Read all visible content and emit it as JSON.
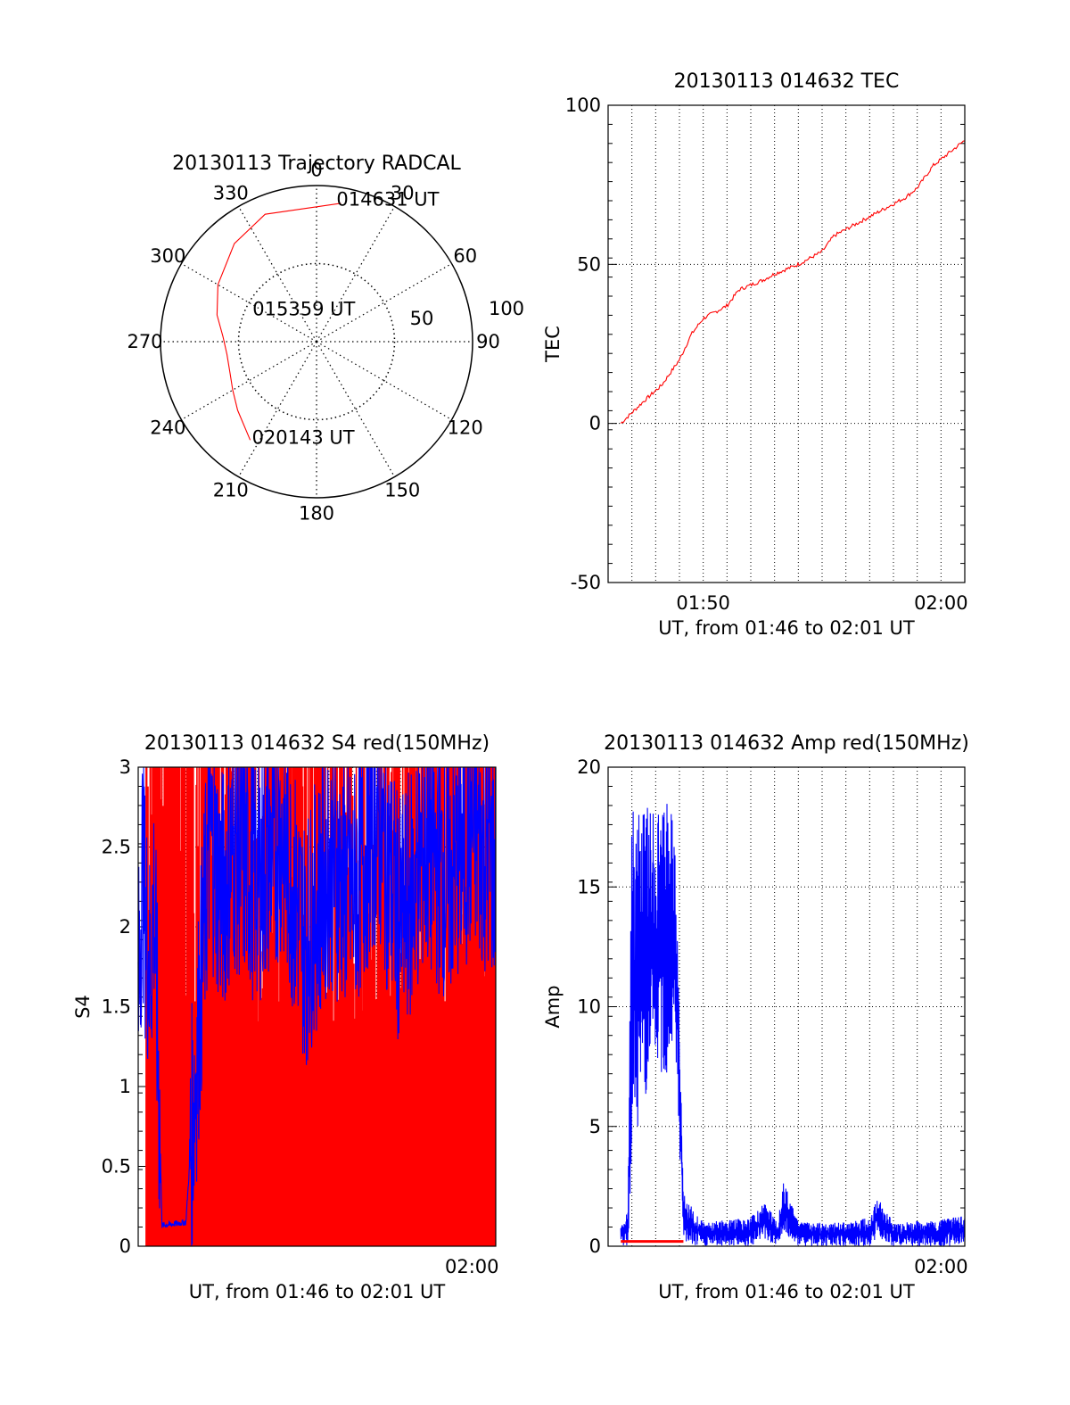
{
  "colors": {
    "red": "#ff0000",
    "blue": "#0000ff",
    "axis": "#000000",
    "grid": "#000000"
  },
  "chart_data": [
    {
      "id": "trajectory",
      "type": "scatter",
      "subtype": "polar",
      "title": "20130113 Trajectory RADCAL",
      "azimuth_labels": [
        "0",
        "30",
        "60",
        "90",
        "120",
        "150",
        "180",
        "210",
        "240",
        "270",
        "300",
        "330"
      ],
      "radius_labels": [
        "50",
        "100"
      ],
      "rlim": [
        0,
        100
      ],
      "grid": true,
      "series": [
        {
          "color": "#ff0000",
          "azimuth": [
            10,
            338,
            320,
            300,
            285,
            273,
            262,
            250,
            240,
            229,
            214
          ],
          "radius": [
            90,
            88,
            82,
            73,
            66,
            60,
            58,
            59,
            62,
            67,
            76
          ]
        }
      ],
      "annotations": [
        {
          "text": "014631 UT",
          "azimuth": 8,
          "radius": 92
        },
        {
          "text": "015359 UT",
          "azimuth": 297,
          "radius": 46
        },
        {
          "text": "020143 UT",
          "azimuth": 214,
          "radius": 74
        }
      ]
    },
    {
      "id": "tec",
      "type": "line",
      "title": "20130113 014632 TEC",
      "ylabel": "TEC",
      "xlabel": "UT, from 01:46 to 02:01 UT",
      "xlim": [
        "01:46",
        "02:01"
      ],
      "ylim": [
        -50,
        100
      ],
      "yticks": [
        "-50",
        "0",
        "50",
        "100"
      ],
      "xticks": [
        "01:50",
        "02:00"
      ],
      "grid": true,
      "series": [
        {
          "color": "#ff0000",
          "x": [
            "01:46:32",
            "01:47:30",
            "01:48:15",
            "01:49:00",
            "01:49:30",
            "01:50:00",
            "01:51:00",
            "01:51:30",
            "01:52:30",
            "01:53:00",
            "01:54:00",
            "01:55:00",
            "01:55:30",
            "01:56:30",
            "01:57:30",
            "01:58:30",
            "01:59:00",
            "01:59:40",
            "02:00:30",
            "02:01:00"
          ],
          "y": [
            0,
            7,
            12,
            20,
            28,
            33,
            37,
            42,
            45,
            47,
            50,
            54,
            59,
            63,
            67,
            71,
            74,
            81,
            86,
            89
          ]
        }
      ]
    },
    {
      "id": "s4",
      "type": "line",
      "title": "20130113 014632 S4 red(150MHz)",
      "ylabel": "S4",
      "xlabel": "UT, from 01:46 to 02:01 UT",
      "xlim": [
        "01:46",
        "02:01"
      ],
      "ylim": [
        0,
        3
      ],
      "yticks": [
        "0",
        "0.5",
        "1",
        "1.5",
        "2",
        "2.5",
        "3"
      ],
      "xticks": [
        "02:00"
      ],
      "grid": true,
      "series": [
        {
          "color": "#ff0000",
          "pattern": "dense vertical spikes spanning 0 to 3"
        },
        {
          "color": "#0000ff",
          "x": [
            "01:46:00",
            "01:46:10",
            "01:46:20",
            "01:46:30",
            "01:46:40",
            "01:47:00",
            "01:47:30",
            "01:48:00",
            "01:48:30",
            "01:49:00",
            "01:49:30",
            "01:50:00",
            "01:51:00",
            "01:52:00",
            "01:53:00",
            "01:54:00",
            "01:55:00",
            "01:56:00",
            "01:57:00",
            "01:58:00",
            "01:59:00",
            "02:00:00",
            "02:01:00"
          ],
          "y": [
            1.5,
            2.4,
            2.0,
            1.7,
            2.2,
            0.13,
            0.14,
            0.15,
            1.3,
            2.6,
            2.2,
            2.5,
            2.3,
            2.6,
            1.9,
            2.4,
            2.2,
            2.7,
            2.0,
            2.5,
            2.3,
            2.6,
            2.4
          ]
        }
      ]
    },
    {
      "id": "amp",
      "type": "line",
      "title": "20130113 014632 Amp red(150MHz)",
      "ylabel": "Amp",
      "xlabel": "UT, from 01:46 to 02:01 UT",
      "xlim": [
        "01:46",
        "02:01"
      ],
      "ylim": [
        0,
        20
      ],
      "yticks": [
        "0",
        "5",
        "10",
        "15",
        "20"
      ],
      "xticks": [
        "02:00"
      ],
      "grid": true,
      "series": [
        {
          "color": "#0000ff",
          "x": [
            "01:46:32",
            "01:46:50",
            "01:47:00",
            "01:47:30",
            "01:48:00",
            "01:48:30",
            "01:48:50",
            "01:49:10",
            "01:50:00",
            "01:52:00",
            "01:52:30",
            "01:53:10",
            "01:53:20",
            "01:54:00",
            "01:56:00",
            "01:57:00",
            "01:57:20",
            "01:58:00",
            "02:00:00",
            "02:01:00"
          ],
          "y": [
            0.5,
            1.0,
            12,
            13,
            12.5,
            13,
            12,
            1.5,
            0.5,
            0.6,
            1.8,
            0.6,
            2.8,
            0.5,
            0.6,
            0.8,
            2.0,
            0.6,
            0.7,
            0.9
          ],
          "band_min": [
            0,
            0,
            4,
            6,
            7,
            7,
            8,
            0,
            0,
            0,
            0.3,
            0,
            0.5,
            0,
            0,
            0,
            0.4,
            0,
            0,
            0
          ],
          "band_max": [
            0.8,
            1.6,
            18.3,
            18.5,
            18,
            19.3,
            17,
            2.2,
            1.0,
            1.2,
            1.9,
            1.0,
            2.9,
            1.0,
            1.0,
            1.2,
            2.1,
            1.0,
            1.1,
            1.3
          ]
        },
        {
          "color": "#ff0000",
          "x": [
            "01:46:32",
            "01:49:10"
          ],
          "y": [
            0.2,
            0.2
          ]
        }
      ]
    }
  ]
}
